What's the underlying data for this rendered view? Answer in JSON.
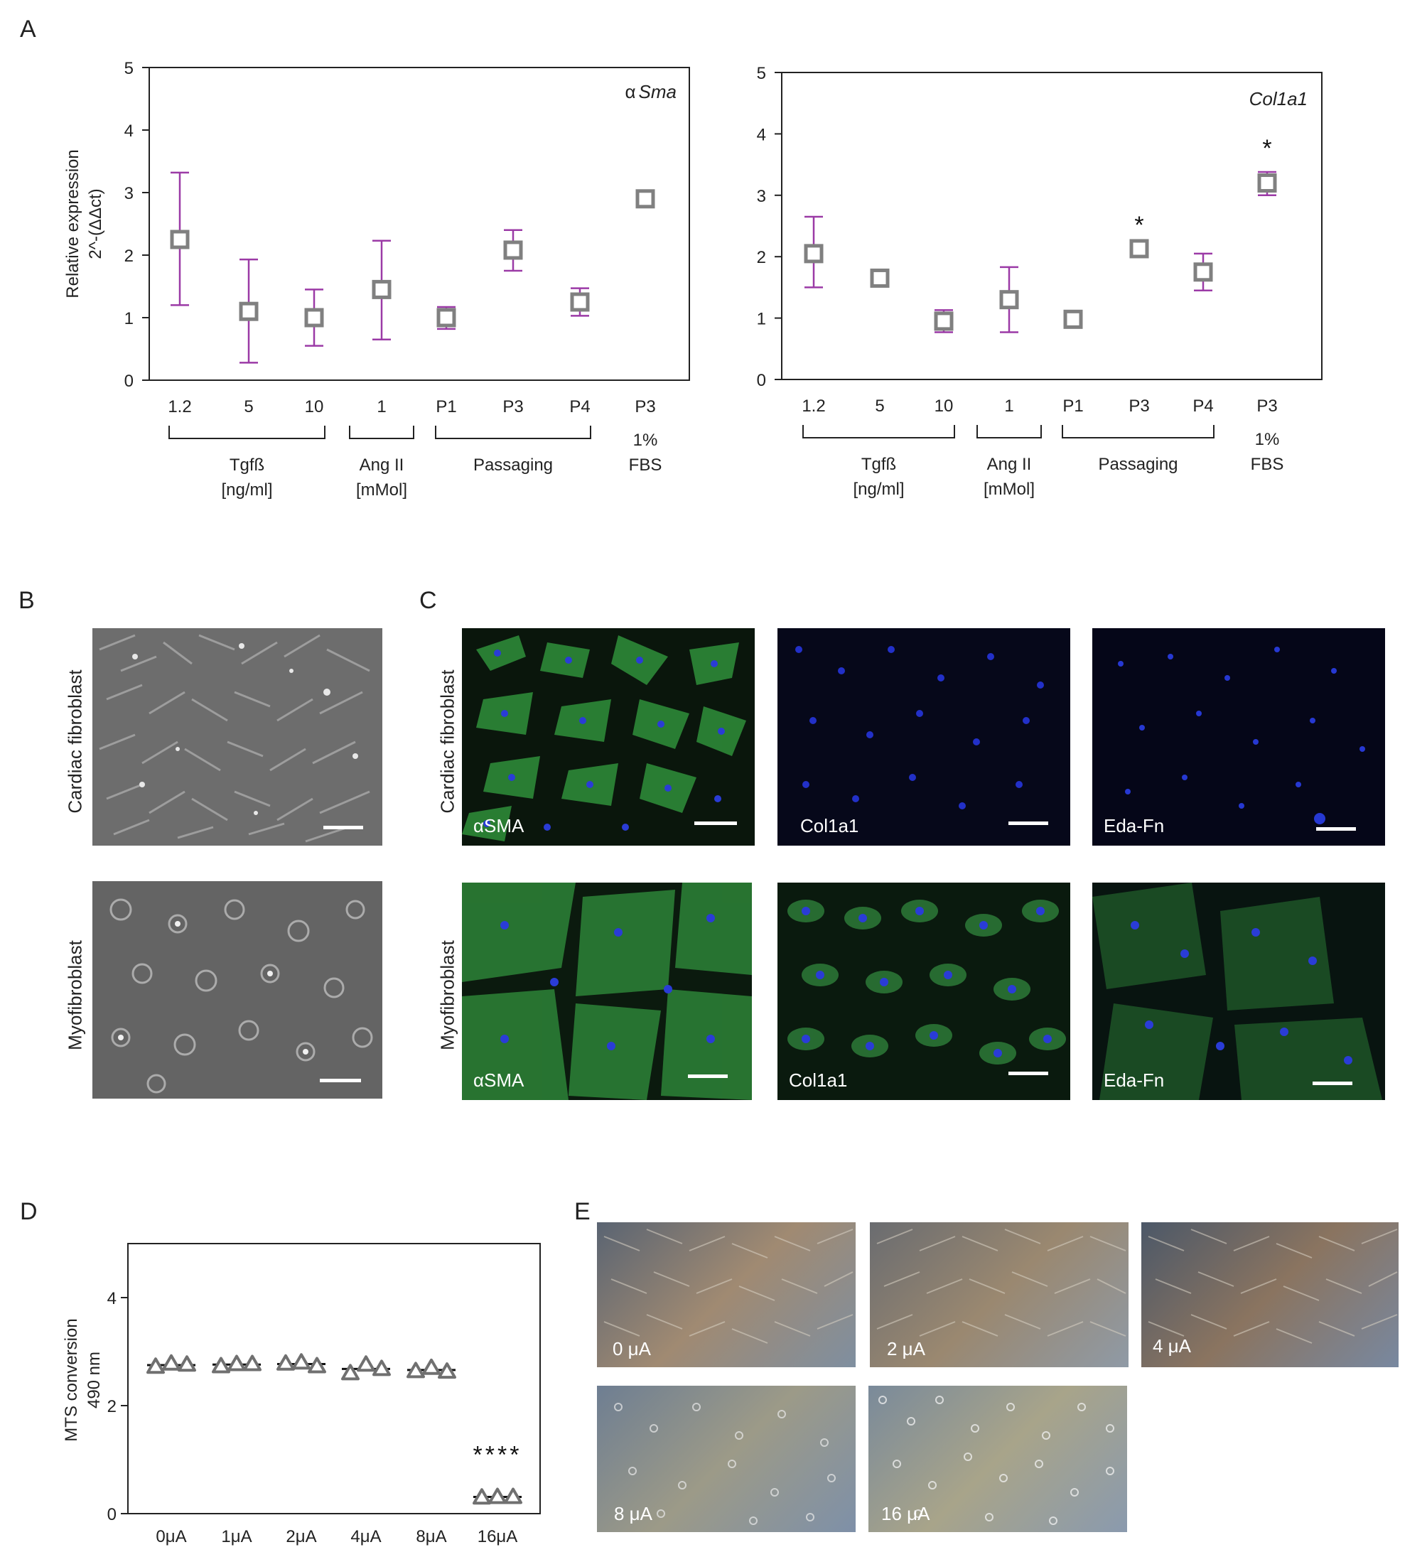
{
  "panels": {
    "A": "A",
    "B": "B",
    "C": "C",
    "D": "D",
    "E": "E"
  },
  "chart_data": [
    {
      "type": "scatter",
      "panel": "A",
      "title": "α Sma",
      "title_prefix": "α",
      "title_gene": "Sma",
      "ylabel_line1": "Relative expression",
      "ylabel_line2": "2^-(ΔΔct)",
      "ylim": [
        0,
        5
      ],
      "yticks": [
        "0",
        "1",
        "2",
        "3",
        "4",
        "5"
      ],
      "categories": [
        "1.2",
        "5",
        "10",
        "1",
        "P1",
        "P3",
        "P4",
        "P3"
      ],
      "values": [
        2.25,
        1.1,
        1.0,
        1.45,
        1.0,
        2.08,
        1.25,
        2.9
      ],
      "err_low": [
        1.2,
        0.28,
        0.55,
        0.65,
        0.82,
        1.75,
        1.03,
        2.9
      ],
      "err_high": [
        3.32,
        1.93,
        1.45,
        2.23,
        1.17,
        2.4,
        1.47,
        2.9
      ],
      "significance": [
        "",
        "",
        "",
        "",
        "",
        "",
        "",
        ""
      ],
      "groups": [
        {
          "label_line1": "Tgfß",
          "label_line2": "[ng/ml]",
          "from": 0,
          "to": 2
        },
        {
          "label_line1": "Ang II",
          "label_line2": "[mMol]",
          "from": 3,
          "to": 3
        },
        {
          "label_line1": "Passaging",
          "label_line2": "",
          "from": 4,
          "to": 6
        },
        {
          "label_line1": "1%",
          "label_line2": "FBS",
          "from": 7,
          "to": 7,
          "no_bracket": true
        }
      ],
      "colors": {
        "marker": "#808080",
        "error": "#9b3aa6"
      }
    },
    {
      "type": "scatter",
      "panel": "A",
      "title": "Col1a1",
      "ylim": [
        0,
        5
      ],
      "yticks": [
        "0",
        "1",
        "2",
        "3",
        "4",
        "5"
      ],
      "categories": [
        "1.2",
        "5",
        "10",
        "1",
        "P1",
        "P3",
        "P4",
        "P3"
      ],
      "values": [
        2.05,
        1.65,
        0.95,
        1.3,
        0.98,
        2.13,
        1.75,
        3.2
      ],
      "err_low": [
        1.5,
        1.65,
        0.77,
        0.77,
        0.98,
        2.13,
        1.45,
        3.0
      ],
      "err_high": [
        2.65,
        1.65,
        1.13,
        1.83,
        0.98,
        2.13,
        2.05,
        3.38
      ],
      "significance": [
        "",
        "",
        "",
        "",
        "",
        "*",
        "",
        "*"
      ],
      "groups": [
        {
          "label_line1": "Tgfß",
          "label_line2": "[ng/ml]",
          "from": 0,
          "to": 2
        },
        {
          "label_line1": "Ang II",
          "label_line2": "[mMol]",
          "from": 3,
          "to": 3
        },
        {
          "label_line1": "Passaging",
          "label_line2": "",
          "from": 4,
          "to": 6
        },
        {
          "label_line1": "1%",
          "label_line2": "FBS",
          "from": 7,
          "to": 7,
          "no_bracket": true
        }
      ],
      "colors": {
        "marker": "#808080",
        "error": "#9b3aa6"
      }
    },
    {
      "type": "scatter",
      "panel": "D",
      "ylabel_line1": "MTS conversion",
      "ylabel_line2": "490 nm",
      "ylim": [
        0,
        5
      ],
      "yticks": [
        "0",
        "2",
        "4"
      ],
      "categories": [
        "0μA",
        "1μA",
        "2μA",
        "4μA",
        "8μA",
        "16μA"
      ],
      "replicates": [
        [
          2.72,
          2.78,
          2.76
        ],
        [
          2.73,
          2.77,
          2.77
        ],
        [
          2.78,
          2.8,
          2.73
        ],
        [
          2.6,
          2.76,
          2.68
        ],
        [
          2.64,
          2.7,
          2.63
        ],
        [
          0.3,
          0.31,
          0.31
        ]
      ],
      "means": [
        2.75,
        2.76,
        2.77,
        2.68,
        2.66,
        0.31
      ],
      "significance": [
        "",
        "",
        "",
        "",
        "",
        "****"
      ],
      "colors": {
        "marker": "#707070",
        "mean": "#111111"
      }
    }
  ],
  "panel_b": {
    "row_labels": [
      "Cardiac fibroblast",
      "Myofibroblast"
    ]
  },
  "panel_c": {
    "row_labels": [
      "Cardiac fibroblast",
      "Myofibroblast"
    ],
    "labels": [
      "αSMA",
      "Col1a1",
      "Eda-Fn",
      "αSMA",
      "Col1a1",
      "Eda-Fn"
    ]
  },
  "panel_e": {
    "labels": [
      "0 μA",
      "2 μA",
      "4 μA",
      "8 μA",
      "16 μA"
    ]
  }
}
